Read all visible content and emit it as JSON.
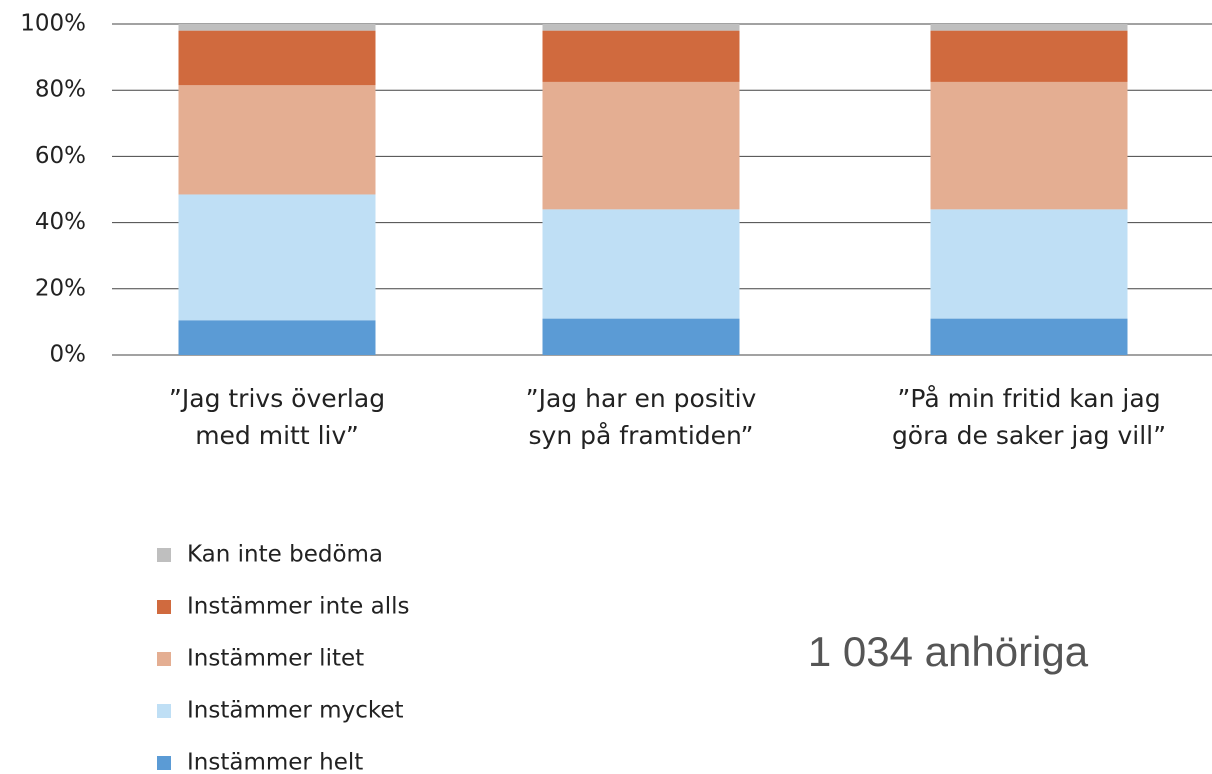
{
  "chart_data": {
    "type": "stacked-bar",
    "categories": [
      [
        "”Jag trivs överlag",
        "med mitt liv”"
      ],
      [
        "”Jag har en positiv",
        "syn på framtiden”"
      ],
      [
        "”På min fritid kan jag",
        "göra de saker jag vill”"
      ]
    ],
    "series": [
      {
        "name": "Instämmer helt",
        "color": "#5b9bd5",
        "values": [
          10.5,
          11,
          11
        ]
      },
      {
        "name": "Instämmer mycket",
        "color": "#bfdff5",
        "values": [
          38,
          33,
          33
        ]
      },
      {
        "name": "Instämmer litet",
        "color": "#e4ae92",
        "values": [
          33,
          38.5,
          38.5
        ]
      },
      {
        "name": "Instämmer inte alls",
        "color": "#d06a3e",
        "values": [
          16.5,
          15.5,
          15.5
        ]
      },
      {
        "name": "Kan inte bedöma",
        "color": "#bfbfbf",
        "values": [
          2,
          2,
          2
        ]
      }
    ],
    "ylim": [
      0,
      100
    ],
    "yticks": [
      {
        "value": 0,
        "label": "0%"
      },
      {
        "value": 20,
        "label": "20%"
      },
      {
        "value": 40,
        "label": "40%"
      },
      {
        "value": 60,
        "label": "60%"
      },
      {
        "value": 80,
        "label": "80%"
      },
      {
        "value": 100,
        "label": "100%"
      }
    ],
    "grid": true,
    "legend": "bottom-left",
    "annotation": "1 034 anhöriga"
  }
}
